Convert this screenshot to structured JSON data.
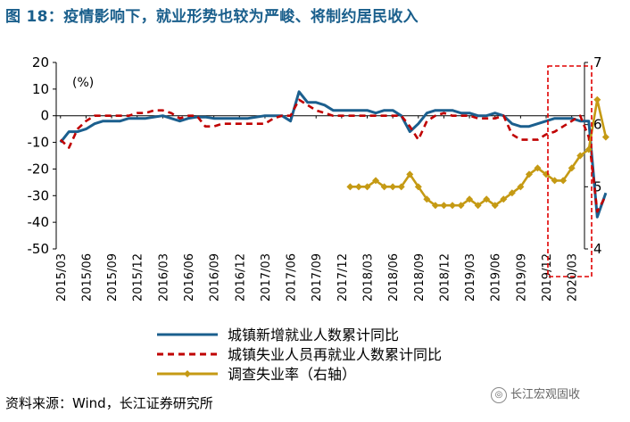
{
  "figure_title": "图 18：疫情影响下，就业形势也较为严峻、将制约居民收入",
  "source": "资料来源：Wind，长江证券研究所",
  "watermark": "长江宏观固收",
  "colors": {
    "new_jobs": "#1b5f8e",
    "reemployed": "#c00000",
    "unemployment": "#c59a14",
    "highlight_box": "#e00000",
    "title": "#1a5f8c"
  },
  "chart_data": {
    "type": "line",
    "unit_label": "(%)",
    "x_labels": [
      "2015/03",
      "2015/06",
      "2015/09",
      "2015/12",
      "2016/03",
      "2016/06",
      "2016/09",
      "2016/12",
      "2017/03",
      "2017/06",
      "2017/09",
      "2017/12",
      "2018/03",
      "2018/06",
      "2018/09",
      "2018/12",
      "2019/03",
      "2019/06",
      "2019/09",
      "2019/12",
      "2020/03"
    ],
    "y_left": {
      "min": -50,
      "max": 20,
      "ticks": [
        -50,
        -40,
        -30,
        -20,
        -10,
        0,
        10,
        20
      ]
    },
    "y_right": {
      "min": 4,
      "max": 7,
      "ticks": [
        4,
        5,
        6,
        7
      ]
    },
    "series": [
      {
        "name": "城镇新增就业人数累计同比",
        "axis": "left",
        "style": "solid",
        "points": [
          [
            0,
            -10
          ],
          [
            1,
            -6
          ],
          [
            2,
            -6
          ],
          [
            3,
            -5
          ],
          [
            4,
            -3
          ],
          [
            5,
            -2
          ],
          [
            6,
            -2
          ],
          [
            7,
            -2
          ],
          [
            8,
            -1
          ],
          [
            9,
            -1
          ],
          [
            10,
            -1
          ],
          [
            11,
            -0.5
          ],
          [
            12,
            0
          ],
          [
            13,
            -1
          ],
          [
            14,
            -2
          ],
          [
            15,
            -1
          ],
          [
            16,
            -0.5
          ],
          [
            17,
            -0.5
          ],
          [
            18,
            -1
          ],
          [
            19,
            -1
          ],
          [
            20,
            -1
          ],
          [
            21,
            -1
          ],
          [
            22,
            -1
          ],
          [
            23,
            -0.5
          ],
          [
            24,
            0
          ],
          [
            25,
            0
          ],
          [
            26,
            0
          ],
          [
            27,
            -2
          ],
          [
            28,
            9
          ],
          [
            29,
            5
          ],
          [
            30,
            5
          ],
          [
            31,
            4
          ],
          [
            32,
            2
          ],
          [
            33,
            2
          ],
          [
            34,
            2
          ],
          [
            35,
            2
          ],
          [
            36,
            2
          ],
          [
            37,
            1
          ],
          [
            38,
            2
          ],
          [
            39,
            2
          ],
          [
            40,
            0
          ],
          [
            41,
            -6
          ],
          [
            42,
            -3
          ],
          [
            43,
            1
          ],
          [
            44,
            2
          ],
          [
            45,
            2
          ],
          [
            46,
            2
          ],
          [
            47,
            1
          ],
          [
            48,
            1
          ],
          [
            49,
            0
          ],
          [
            50,
            0
          ],
          [
            51,
            1
          ],
          [
            52,
            0
          ],
          [
            53,
            -3
          ],
          [
            54,
            -4
          ],
          [
            55,
            -4
          ],
          [
            56,
            -3
          ],
          [
            57,
            -2
          ],
          [
            58,
            -1
          ],
          [
            59,
            -1
          ],
          [
            60,
            -1
          ],
          [
            61,
            -2
          ],
          [
            62,
            -2
          ],
          [
            63,
            -38
          ],
          [
            64,
            -29
          ]
        ]
      },
      {
        "name": "城镇失业人员再就业人数累计同比",
        "axis": "left",
        "style": "dashed",
        "points": [
          [
            0,
            -9
          ],
          [
            1,
            -12
          ],
          [
            2,
            -5
          ],
          [
            3,
            -2
          ],
          [
            4,
            0
          ],
          [
            5,
            0
          ],
          [
            6,
            0
          ],
          [
            7,
            0
          ],
          [
            8,
            0
          ],
          [
            9,
            1
          ],
          [
            10,
            1
          ],
          [
            11,
            2
          ],
          [
            12,
            2
          ],
          [
            13,
            1
          ],
          [
            14,
            -1
          ],
          [
            15,
            0
          ],
          [
            16,
            0
          ],
          [
            17,
            -4
          ],
          [
            18,
            -4
          ],
          [
            19,
            -3
          ],
          [
            20,
            -3
          ],
          [
            21,
            -3
          ],
          [
            22,
            -3
          ],
          [
            23,
            -3
          ],
          [
            24,
            -3
          ],
          [
            25,
            -1
          ],
          [
            26,
            0
          ],
          [
            27,
            0
          ],
          [
            28,
            6
          ],
          [
            29,
            4
          ],
          [
            30,
            2
          ],
          [
            31,
            1
          ],
          [
            32,
            0
          ],
          [
            33,
            0
          ],
          [
            34,
            0
          ],
          [
            35,
            0
          ],
          [
            36,
            0
          ],
          [
            37,
            0
          ],
          [
            38,
            0
          ],
          [
            39,
            0
          ],
          [
            40,
            0
          ],
          [
            41,
            -4
          ],
          [
            42,
            -9
          ],
          [
            43,
            -2
          ],
          [
            44,
            0
          ],
          [
            45,
            1
          ],
          [
            46,
            0
          ],
          [
            47,
            0
          ],
          [
            48,
            0
          ],
          [
            49,
            -1
          ],
          [
            50,
            -1
          ],
          [
            51,
            -1
          ],
          [
            52,
            0
          ],
          [
            53,
            -7
          ],
          [
            54,
            -9
          ],
          [
            55,
            -9
          ],
          [
            56,
            -9
          ],
          [
            57,
            -7
          ],
          [
            58,
            -6
          ],
          [
            59,
            -4
          ],
          [
            60,
            -2
          ],
          [
            61,
            0
          ],
          [
            62,
            -8
          ],
          [
            63,
            -36
          ],
          [
            64,
            -30
          ]
        ]
      },
      {
        "name": "调查失业率（右轴）",
        "axis": "right",
        "style": "solid-marker",
        "points": [
          [
            34,
            5.0
          ],
          [
            35,
            5.0
          ],
          [
            36,
            5.0
          ],
          [
            37,
            5.1
          ],
          [
            38,
            5.0
          ],
          [
            39,
            5.0
          ],
          [
            40,
            5.0
          ],
          [
            41,
            5.2
          ],
          [
            42,
            5.0
          ],
          [
            43,
            4.8
          ],
          [
            44,
            4.7
          ],
          [
            45,
            4.7
          ],
          [
            46,
            4.7
          ],
          [
            47,
            4.7
          ],
          [
            48,
            4.8
          ],
          [
            49,
            4.7
          ],
          [
            50,
            4.8
          ],
          [
            51,
            4.7
          ],
          [
            52,
            4.8
          ],
          [
            53,
            4.9
          ],
          [
            54,
            5.0
          ],
          [
            55,
            5.2
          ],
          [
            56,
            5.3
          ],
          [
            57,
            5.2
          ],
          [
            58,
            5.1
          ],
          [
            59,
            5.1
          ],
          [
            60,
            5.3
          ],
          [
            61,
            5.5
          ],
          [
            62,
            5.6
          ],
          [
            63,
            6.4
          ],
          [
            64,
            5.8
          ]
        ]
      }
    ]
  }
}
